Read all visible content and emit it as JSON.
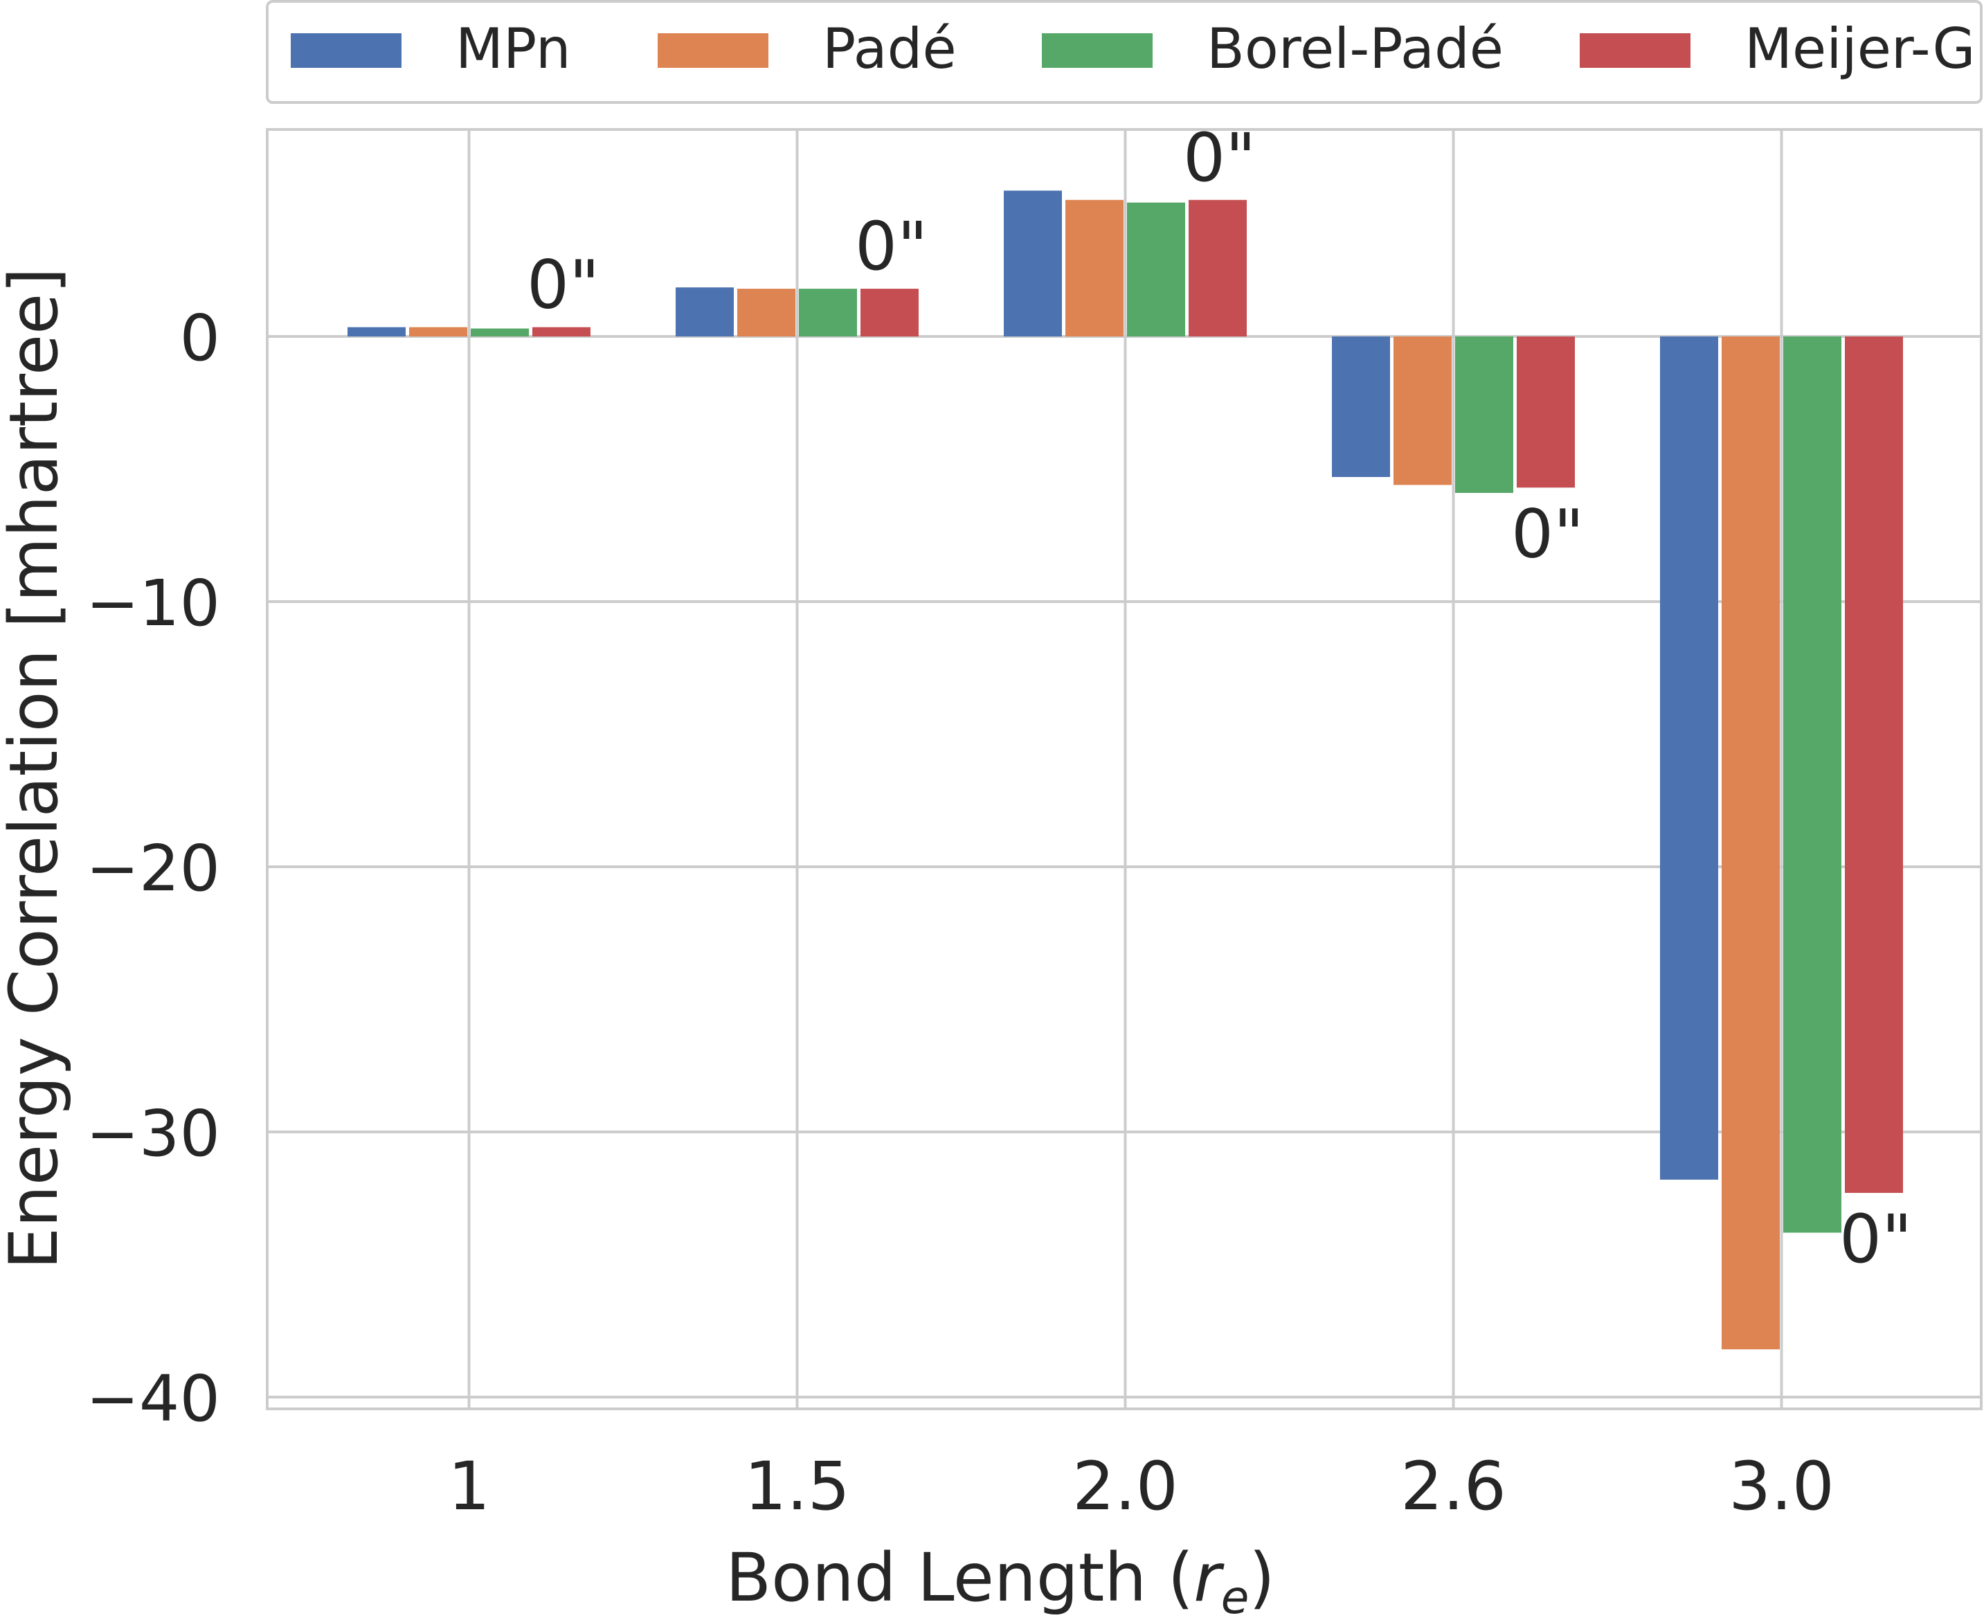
{
  "chart_data": {
    "type": "bar",
    "title": "",
    "xlabel": "Bond Length (",
    "xlabel_sub": "r",
    "xlabel_subscript": "e",
    "xlabel_close": ")",
    "ylabel": "Energy Correlation [mhartree]",
    "categories": [
      "1",
      "1.5",
      "2.0",
      "2.6",
      "3.0"
    ],
    "ylim": [
      -40,
      7.5
    ],
    "yticks": [
      0,
      -10,
      -20,
      -30,
      -40
    ],
    "ytick_labels": [
      "0",
      "−10",
      "−20",
      "−30",
      "−40"
    ],
    "grid": true,
    "legend_placement": "top",
    "series": [
      {
        "name": "MPn",
        "color": "#4c72b0",
        "values": [
          0.35,
          1.85,
          5.5,
          -5.3,
          -31.8
        ]
      },
      {
        "name": "Padé",
        "color": "#dd8452",
        "values": [
          0.35,
          1.8,
          5.15,
          -5.6,
          -38.2
        ]
      },
      {
        "name": "Borel-Padé",
        "color": "#55a868",
        "values": [
          0.3,
          1.8,
          5.05,
          -5.9,
          -33.8
        ]
      },
      {
        "name": "Meijer-G",
        "color": "#c44e52",
        "values": [
          0.35,
          1.8,
          5.15,
          -5.7,
          -32.3
        ]
      }
    ],
    "annotations": [
      {
        "category": "1",
        "text": "0\""
      },
      {
        "category": "1.5",
        "text": "0\""
      },
      {
        "category": "2.0",
        "text": "0\""
      },
      {
        "category": "2.6",
        "text": "0\""
      },
      {
        "category": "3.0",
        "text": "0\""
      }
    ]
  }
}
